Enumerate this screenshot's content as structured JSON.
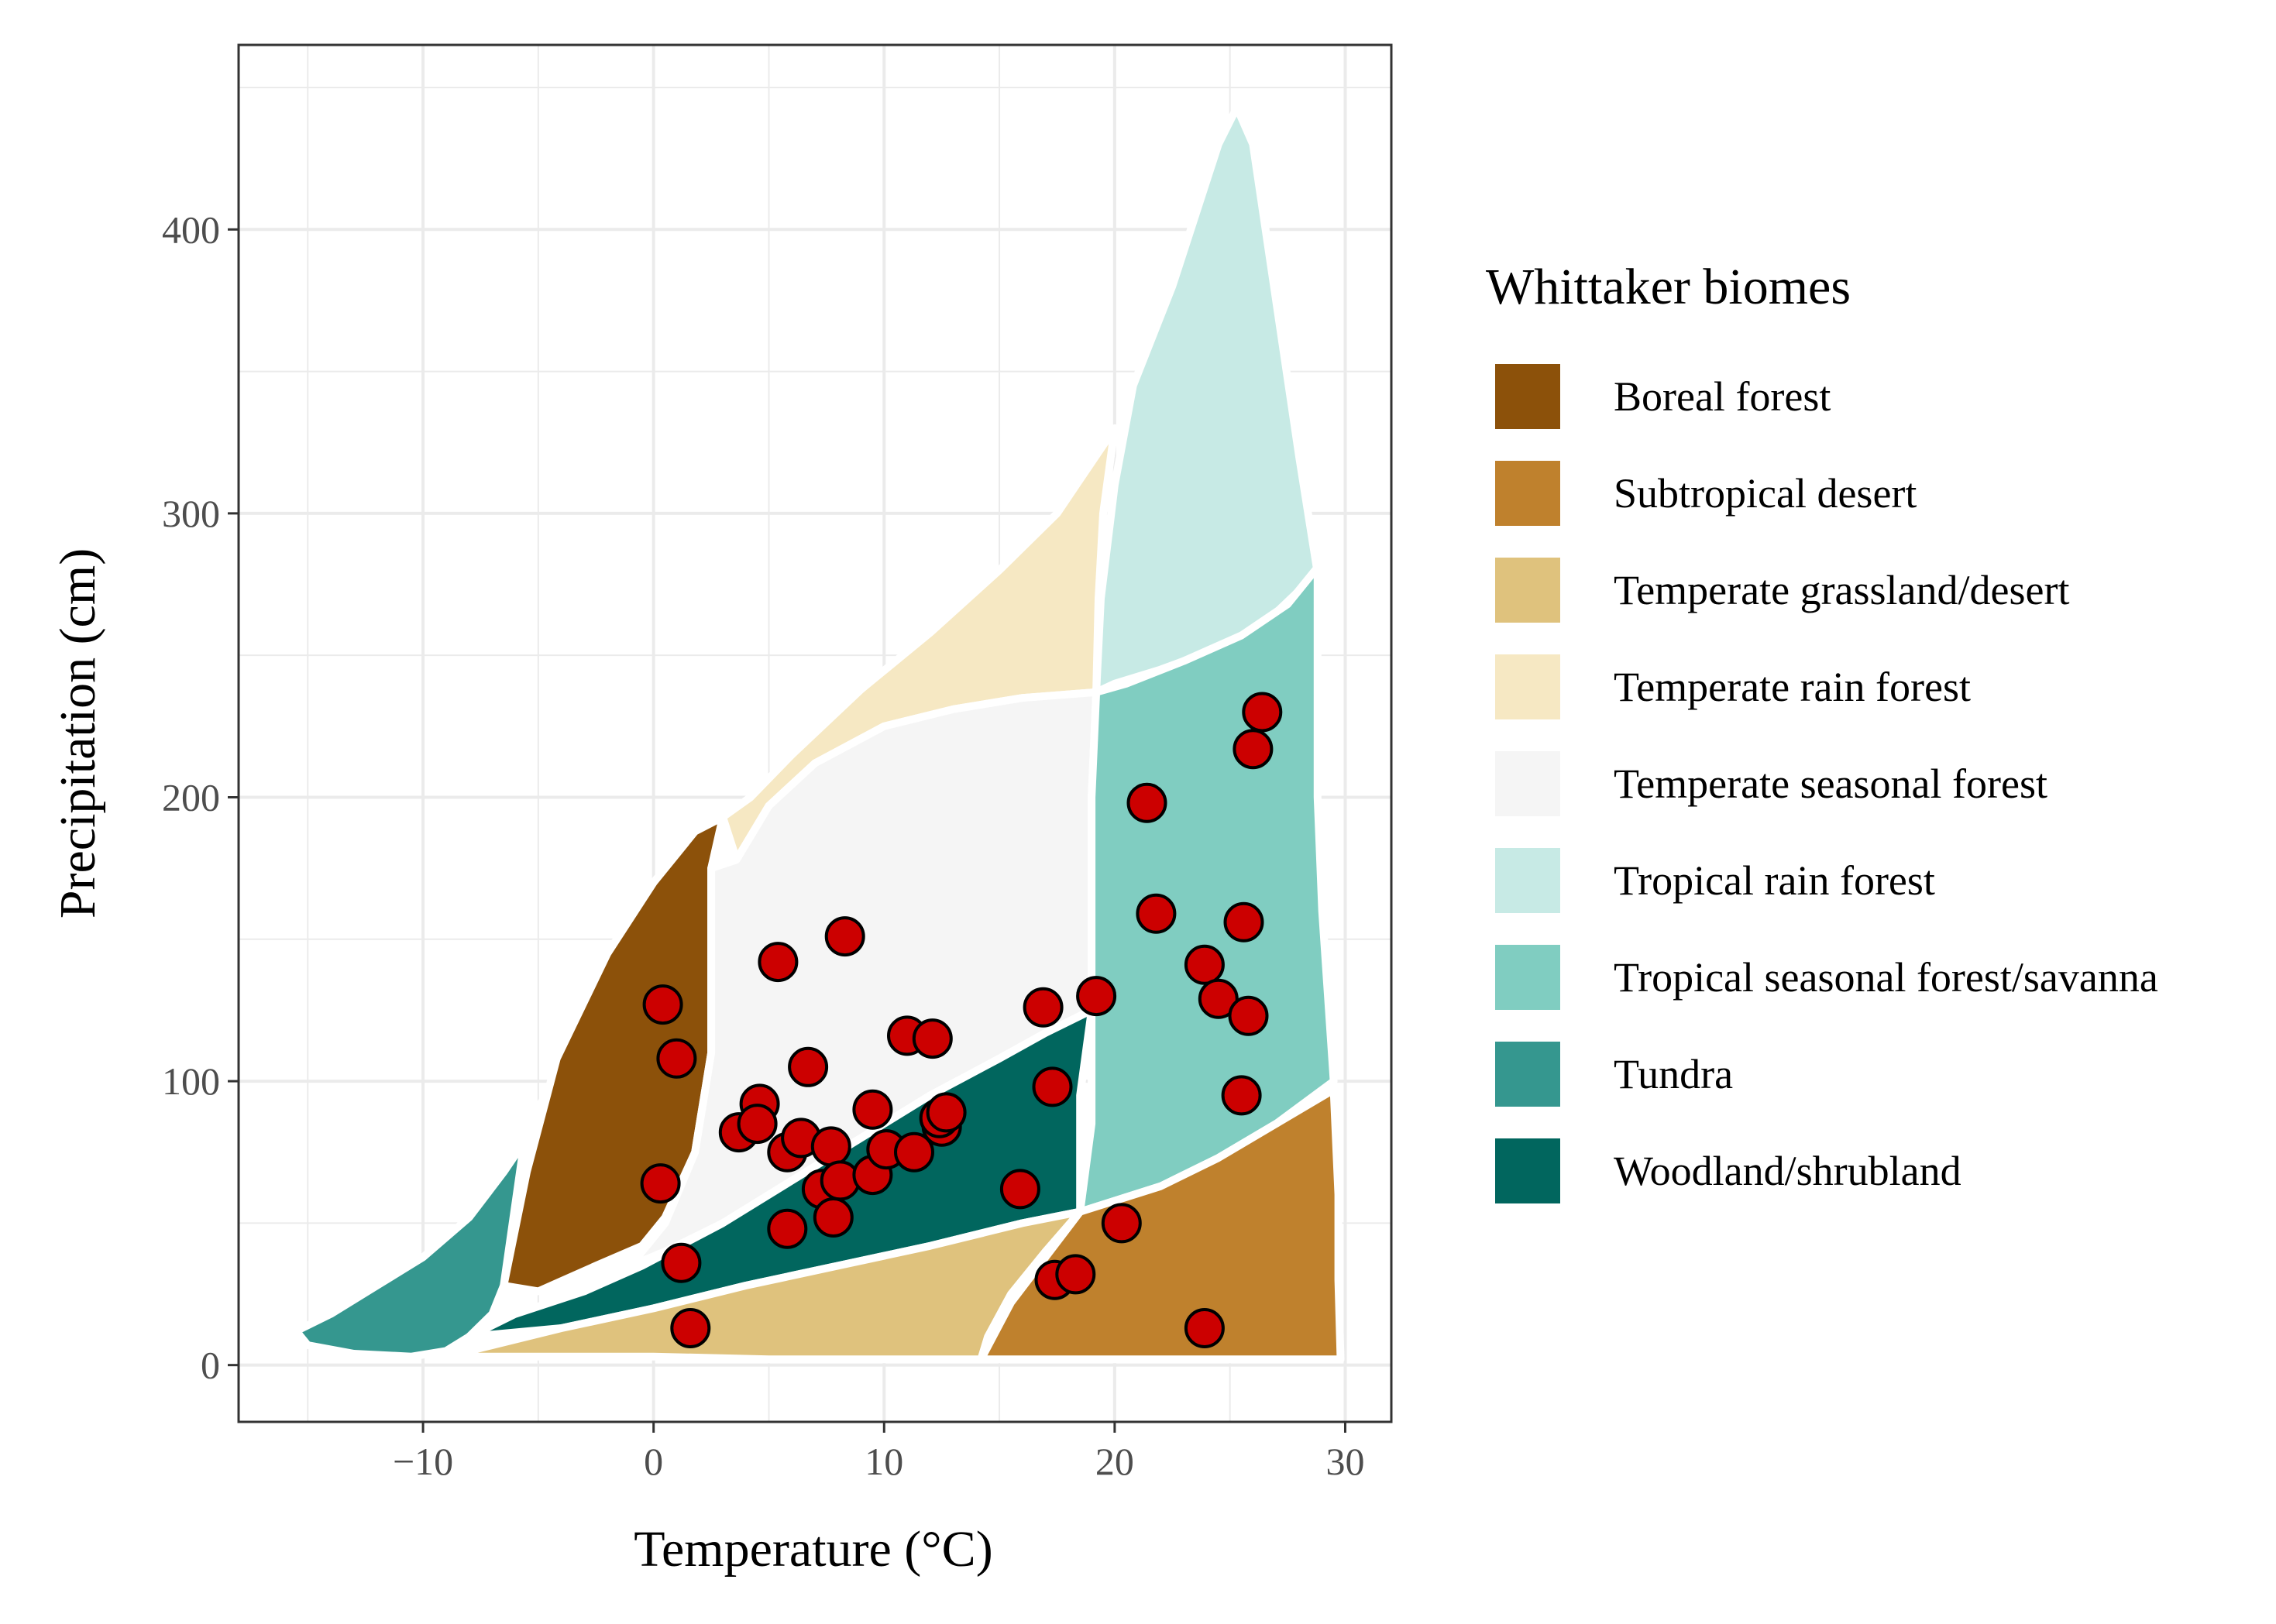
{
  "chart_data": {
    "type": "scatter",
    "title": "",
    "xlabel": "Temperature (°C)",
    "ylabel": "Precipitation (cm)",
    "xlim": [
      -18,
      32
    ],
    "ylim": [
      -20,
      465
    ],
    "x_ticks": [
      -10,
      0,
      10,
      20,
      30
    ],
    "x_tick_labels": [
      "−10",
      "0",
      "10",
      "20",
      "30"
    ],
    "y_ticks": [
      0,
      100,
      200,
      300,
      400
    ],
    "y_tick_labels": [
      "0",
      "100",
      "200",
      "300",
      "400"
    ],
    "grid": true,
    "legend": {
      "title": "Whittaker biomes",
      "placement": "right",
      "entries": [
        {
          "label": "Boreal forest",
          "color": "#8C510A"
        },
        {
          "label": "Subtropical desert",
          "color": "#BF812D"
        },
        {
          "label": "Temperate grassland/desert",
          "color": "#DFC27D"
        },
        {
          "label": "Temperate rain forest",
          "color": "#F6E8C3"
        },
        {
          "label": "Temperate seasonal forest",
          "color": "#F5F5F5"
        },
        {
          "label": "Tropical rain forest",
          "color": "#C7EAE5"
        },
        {
          "label": "Tropical seasonal forest/savanna",
          "color": "#80CDC1"
        },
        {
          "label": "Tundra",
          "color": "#35978F"
        },
        {
          "label": "Woodland/shrubland",
          "color": "#01665E"
        }
      ]
    },
    "biomes": [
      {
        "name": "Tundra",
        "color": "#35978F",
        "polygon": [
          [
            -15.5,
            12
          ],
          [
            -14,
            18
          ],
          [
            -12,
            28
          ],
          [
            -10,
            38
          ],
          [
            -8,
            52
          ],
          [
            -6.5,
            68
          ],
          [
            -5.5,
            80
          ],
          [
            -4.5,
            97
          ],
          [
            -5.5,
            85
          ],
          [
            -6.5,
            28
          ],
          [
            -7,
            18
          ],
          [
            -8,
            10
          ],
          [
            -9,
            5
          ],
          [
            -10.5,
            3
          ],
          [
            -13,
            4
          ],
          [
            -15,
            7
          ]
        ]
      },
      {
        "name": "Boreal forest",
        "color": "#8C510A",
        "polygon": [
          [
            -6.5,
            28
          ],
          [
            -5.5,
            68
          ],
          [
            -4.2,
            108
          ],
          [
            -2,
            145
          ],
          [
            0,
            170
          ],
          [
            1.8,
            188
          ],
          [
            3,
            193
          ],
          [
            2.5,
            175
          ],
          [
            2.5,
            110
          ],
          [
            1.8,
            75
          ],
          [
            0.5,
            52
          ],
          [
            -0.5,
            42
          ],
          [
            -2.5,
            35
          ],
          [
            -5,
            26
          ]
        ]
      },
      {
        "name": "Temperate rain forest",
        "color": "#F6E8C3",
        "polygon": [
          [
            3,
            193
          ],
          [
            4.2,
            200
          ],
          [
            6,
            215
          ],
          [
            9,
            238
          ],
          [
            12,
            258
          ],
          [
            15,
            280
          ],
          [
            17.5,
            300
          ],
          [
            20,
            330
          ],
          [
            19.5,
            300
          ],
          [
            19.3,
            270
          ],
          [
            19.2,
            237
          ],
          [
            16,
            235
          ],
          [
            13,
            231
          ],
          [
            10,
            225
          ],
          [
            7,
            212
          ],
          [
            5,
            197
          ],
          [
            3.6,
            178
          ]
        ]
      },
      {
        "name": "Tropical rain forest",
        "color": "#C7EAE5",
        "polygon": [
          [
            19.2,
            237
          ],
          [
            19.4,
            270
          ],
          [
            20,
            310
          ],
          [
            20.8,
            345
          ],
          [
            22.5,
            380
          ],
          [
            24.5,
            430
          ],
          [
            25.3,
            443
          ],
          [
            26,
            430
          ],
          [
            27,
            375
          ],
          [
            28,
            320
          ],
          [
            28.8,
            279
          ],
          [
            27,
            265
          ],
          [
            25,
            254
          ],
          [
            22,
            245
          ],
          [
            20,
            240
          ]
        ]
      },
      {
        "name": "Temperate seasonal forest",
        "color": "#F5F5F5",
        "polygon": [
          [
            3.6,
            178
          ],
          [
            5,
            197
          ],
          [
            7,
            212
          ],
          [
            10,
            225
          ],
          [
            13,
            231
          ],
          [
            16,
            235
          ],
          [
            19.2,
            237
          ],
          [
            19,
            200
          ],
          [
            19,
            160
          ],
          [
            19,
            125
          ],
          [
            17,
            117
          ],
          [
            15,
            108
          ],
          [
            12,
            95
          ],
          [
            9,
            80
          ],
          [
            6,
            65
          ],
          [
            3,
            50
          ],
          [
            0.5,
            40
          ],
          [
            -1,
            35
          ],
          [
            0.5,
            50
          ],
          [
            1.8,
            75
          ],
          [
            2.5,
            110
          ],
          [
            2.5,
            175
          ]
        ]
      },
      {
        "name": "Tropical seasonal forest/savanna",
        "color": "#80CDC1",
        "polygon": [
          [
            19.2,
            237
          ],
          [
            20.5,
            240
          ],
          [
            23,
            248
          ],
          [
            25.5,
            257
          ],
          [
            27.5,
            268
          ],
          [
            28.8,
            281
          ],
          [
            28.8,
            250
          ],
          [
            28.8,
            200
          ],
          [
            29,
            160
          ],
          [
            29.5,
            100
          ],
          [
            27,
            85
          ],
          [
            24.5,
            73
          ],
          [
            22,
            63
          ],
          [
            18.5,
            54
          ],
          [
            19,
            85
          ],
          [
            19,
            125
          ],
          [
            19,
            160
          ],
          [
            19,
            200
          ]
        ]
      },
      {
        "name": "Woodland/shrubland",
        "color": "#01665E",
        "polygon": [
          [
            -8,
            10
          ],
          [
            -6,
            18
          ],
          [
            -3,
            26
          ],
          [
            -0.5,
            35
          ],
          [
            3,
            50
          ],
          [
            6,
            65
          ],
          [
            9,
            80
          ],
          [
            12,
            95
          ],
          [
            15,
            108
          ],
          [
            17,
            117
          ],
          [
            19,
            125
          ],
          [
            18.5,
            95
          ],
          [
            18.5,
            54
          ],
          [
            16,
            50
          ],
          [
            12,
            42
          ],
          [
            8,
            35
          ],
          [
            4,
            28
          ],
          [
            0,
            20
          ],
          [
            -4,
            13
          ]
        ]
      },
      {
        "name": "Temperate grassland/desert",
        "color": "#DFC27D",
        "polygon": [
          [
            -9,
            3
          ],
          [
            -4,
            13
          ],
          [
            0,
            20
          ],
          [
            4,
            28
          ],
          [
            8,
            35
          ],
          [
            12,
            42
          ],
          [
            16,
            50
          ],
          [
            18.5,
            54
          ],
          [
            17,
            40
          ],
          [
            15.5,
            25
          ],
          [
            14.5,
            10
          ],
          [
            14.2,
            2
          ],
          [
            10,
            2
          ],
          [
            5,
            2
          ],
          [
            0,
            3
          ],
          [
            -5,
            3
          ]
        ]
      },
      {
        "name": "Subtropical desert",
        "color": "#BF812D",
        "polygon": [
          [
            14.2,
            2
          ],
          [
            15.5,
            22
          ],
          [
            17,
            38
          ],
          [
            18.5,
            54
          ],
          [
            22,
            63
          ],
          [
            24.5,
            73
          ],
          [
            27,
            85
          ],
          [
            29.5,
            97
          ],
          [
            29.7,
            60
          ],
          [
            29.7,
            30
          ],
          [
            29.8,
            2
          ],
          [
            25,
            2
          ],
          [
            20,
            2
          ]
        ]
      }
    ],
    "points": [
      [
        0.4,
        127
      ],
      [
        1,
        108
      ],
      [
        0.3,
        64
      ],
      [
        1.2,
        36
      ],
      [
        1.6,
        13
      ],
      [
        5.4,
        142
      ],
      [
        8.3,
        151
      ],
      [
        6.7,
        105
      ],
      [
        4.6,
        92
      ],
      [
        3.7,
        82
      ],
      [
        4.5,
        85
      ],
      [
        5.8,
        75
      ],
      [
        6.4,
        80
      ],
      [
        7.7,
        77
      ],
      [
        7.3,
        62
      ],
      [
        7.8,
        52
      ],
      [
        5.8,
        48
      ],
      [
        8.1,
        65
      ],
      [
        9.5,
        90
      ],
      [
        9.5,
        67
      ],
      [
        10.1,
        76
      ],
      [
        11,
        116
      ],
      [
        12.1,
        115
      ],
      [
        11.3,
        75
      ],
      [
        12.5,
        84
      ],
      [
        12.4,
        87
      ],
      [
        12.7,
        89
      ],
      [
        15.9,
        62
      ],
      [
        16.9,
        126
      ],
      [
        17.3,
        98
      ],
      [
        17.4,
        30
      ],
      [
        18.3,
        32
      ],
      [
        19.2,
        130
      ],
      [
        20.3,
        50
      ],
      [
        21.4,
        198
      ],
      [
        21.8,
        159
      ],
      [
        23.9,
        141
      ],
      [
        24.5,
        129
      ],
      [
        25.6,
        156
      ],
      [
        25.8,
        123
      ],
      [
        25.5,
        95
      ],
      [
        26,
        217
      ],
      [
        26.4,
        230
      ],
      [
        23.9,
        13
      ]
    ],
    "point_color": "#CC0000"
  }
}
